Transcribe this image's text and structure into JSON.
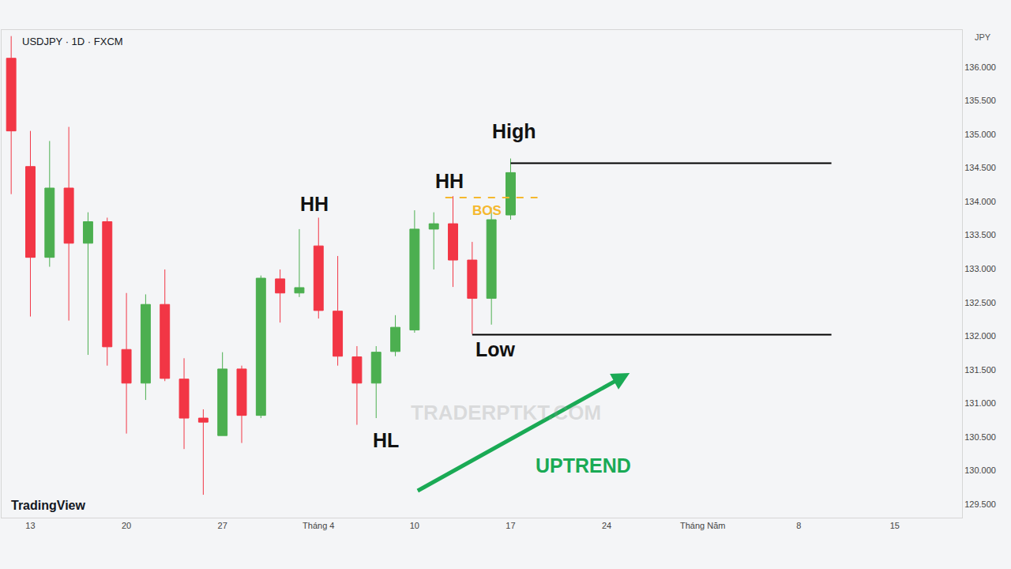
{
  "chart_data": {
    "type": "candlestick",
    "title": "USDJPY · 1D · FXCM",
    "currency_label": "JPY",
    "logo": "TradingView",
    "watermark": "TRADERPTKT.COM",
    "categories": [
      null,
      "13",
      null,
      null,
      null,
      null,
      "20",
      null,
      null,
      null,
      null,
      "27",
      null,
      null,
      null,
      null,
      "Tháng 4",
      null,
      null,
      null,
      null,
      "10",
      null,
      null,
      null,
      null,
      "17",
      null,
      null,
      null,
      null,
      "24",
      null,
      null,
      null,
      null,
      "Tháng Năm",
      null,
      null,
      null,
      null,
      "8",
      null,
      null,
      null,
      null,
      "15",
      null,
      null,
      null
    ],
    "open": [
      136.13,
      134.52,
      133.17,
      134.2,
      133.38,
      133.7,
      131.8,
      131.3,
      132.47,
      131.36,
      130.78,
      130.52,
      131.51,
      130.82,
      132.85,
      132.64,
      133.34,
      132.37,
      131.69,
      131.3,
      131.77,
      132.09,
      133.59,
      133.67,
      133.13,
      132.56,
      133.8,
      null,
      null,
      null,
      null,
      null,
      null,
      null,
      null,
      null,
      null,
      null,
      null,
      null,
      null,
      null,
      null,
      null,
      null,
      null,
      null,
      null,
      null,
      null
    ],
    "high": [
      136.46,
      135.05,
      134.9,
      135.11,
      133.84,
      133.76,
      132.64,
      132.62,
      132.99,
      131.67,
      130.91,
      131.76,
      131.56,
      132.9,
      132.99,
      133.59,
      133.76,
      133.19,
      131.85,
      131.85,
      132.31,
      133.87,
      133.84,
      134.08,
      133.4,
      133.91,
      134.64,
      null,
      null,
      null,
      null,
      null,
      null,
      null,
      null,
      null,
      null,
      null,
      null,
      null,
      null,
      null,
      null,
      null,
      null,
      null,
      null,
      null,
      null,
      null
    ],
    "low": [
      134.11,
      132.29,
      133.03,
      132.23,
      131.72,
      131.56,
      130.55,
      131.05,
      131.33,
      130.32,
      129.64,
      130.52,
      130.41,
      130.78,
      132.2,
      132.58,
      132.26,
      131.56,
      130.68,
      130.78,
      131.7,
      132.05,
      132.99,
      132.73,
      132.03,
      132.17,
      133.73,
      null,
      null,
      null,
      null,
      null,
      null,
      null,
      null,
      null,
      null,
      null,
      null,
      null,
      null,
      null,
      null,
      null,
      null,
      null,
      null,
      null,
      null,
      null
    ],
    "close": [
      135.05,
      133.17,
      134.2,
      133.38,
      133.7,
      131.84,
      131.3,
      132.47,
      131.37,
      130.78,
      130.72,
      131.51,
      130.82,
      132.86,
      132.64,
      132.72,
      132.38,
      131.7,
      131.3,
      131.76,
      132.13,
      133.59,
      133.67,
      133.13,
      132.56,
      133.73,
      134.43,
      null,
      null,
      null,
      null,
      null,
      null,
      null,
      null,
      null,
      null,
      null,
      null,
      null,
      null,
      null,
      null,
      null,
      null,
      null,
      null,
      null,
      null,
      null
    ],
    "xlim": [
      -0.5,
      49.5
    ],
    "ylim": [
      129.3,
      136.55
    ],
    "yticks": [
      {
        "value": 129.5,
        "label": "129.500"
      },
      {
        "value": 130,
        "label": "130.000"
      },
      {
        "value": 130.5,
        "label": "130.500"
      },
      {
        "value": 131,
        "label": "131.000"
      },
      {
        "value": 131.5,
        "label": "131.500"
      },
      {
        "value": 132,
        "label": "132.000"
      },
      {
        "value": 132.5,
        "label": "132.500"
      },
      {
        "value": 133,
        "label": "133.000"
      },
      {
        "value": 133.5,
        "label": "133.500"
      },
      {
        "value": 134,
        "label": "134.000"
      },
      {
        "value": 134.5,
        "label": "134.500"
      },
      {
        "value": 135,
        "label": "135.000"
      },
      {
        "value": 135.5,
        "label": "135.500"
      },
      {
        "value": 136,
        "label": "136.000"
      }
    ],
    "grid": false,
    "levels": [
      {
        "y": 134.57,
        "x0": 26,
        "x1": 42.7,
        "line_style": "solid",
        "color": "#000000"
      },
      {
        "y": 132.02,
        "x0": 24,
        "x1": 42.7,
        "line_style": "solid",
        "color": "#000000"
      },
      {
        "y": 134.06,
        "x0": 22.6,
        "x1": 27.4,
        "line_style": "dashed",
        "color": "#f5b82e",
        "label": "BOS",
        "label_x": 24.75,
        "label_y": 133.87
      }
    ],
    "annotations": [
      {
        "text": "HH",
        "x": 15.8,
        "y": 133.97,
        "color": "#111111"
      },
      {
        "text": "HH",
        "x": 22.8,
        "y": 134.3,
        "color": "#111111"
      },
      {
        "text": "High",
        "x": 26.2,
        "y": 135.05,
        "color": "#111111"
      },
      {
        "text": "HL",
        "x": 19.5,
        "y": 130.45,
        "color": "#111111"
      },
      {
        "text": "Low",
        "x": 25.2,
        "y": 131.8,
        "color": "#111111"
      },
      {
        "text": "UPTREND",
        "x": 29.8,
        "y": 130.08,
        "color": "#1aaa55"
      }
    ],
    "arrow": {
      "x0": 21.1,
      "y0": 129.69,
      "x1": 32.2,
      "y1": 131.45,
      "color": "#1aaa55"
    }
  }
}
